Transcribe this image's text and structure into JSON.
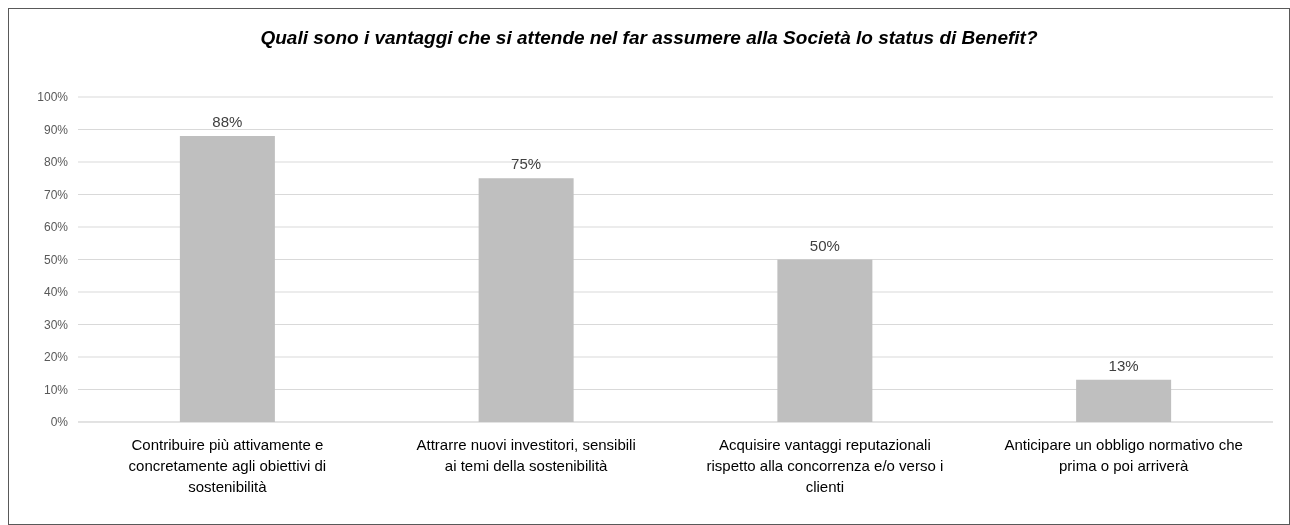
{
  "chart_data": {
    "type": "bar",
    "title": "Quali sono i vantaggi che si attende nel far assumere alla Società lo status di Benefit?",
    "categories": [
      "Contribuire più attivamente e concretamente agli obiettivi di sostenibilità",
      "Attrarre nuovi investitori, sensibili ai temi della sostenibilità",
      "Acquisire vantaggi reputazionali rispetto alla concorrenza e/o verso i clienti",
      "Anticipare un obbligo normativo che prima o poi arriverà"
    ],
    "values": [
      88,
      75,
      50,
      13
    ],
    "value_labels": [
      "88%",
      "75%",
      "50%",
      "13%"
    ],
    "color": "#bfbfbf",
    "ylim": [
      0,
      100
    ],
    "yticks": [
      {
        "value": 0,
        "label": "0%"
      },
      {
        "value": 10,
        "label": "10%"
      },
      {
        "value": 20,
        "label": "20%"
      },
      {
        "value": 30,
        "label": "30%"
      },
      {
        "value": 40,
        "label": "40%"
      },
      {
        "value": 50,
        "label": "50%"
      },
      {
        "value": 60,
        "label": "60%"
      },
      {
        "value": 70,
        "label": "70%"
      },
      {
        "value": 80,
        "label": "80%"
      },
      {
        "value": 90,
        "label": "90%"
      },
      {
        "value": 100,
        "label": "100%"
      }
    ],
    "grid": "y"
  }
}
